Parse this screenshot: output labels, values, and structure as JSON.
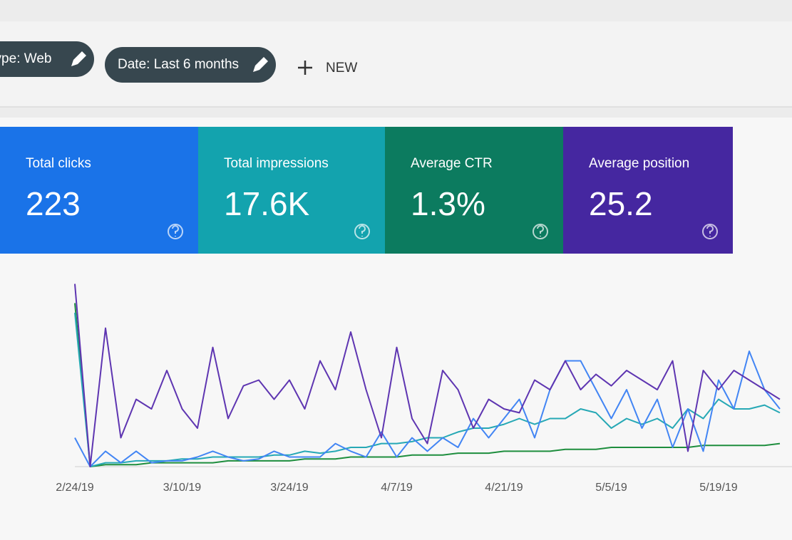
{
  "filters": [
    {
      "label": "Type: Web"
    },
    {
      "label": "Date: Last 6 months"
    }
  ],
  "new_button": "NEW",
  "metrics": [
    {
      "title": "Total clicks",
      "value": "223",
      "color": "#1a73e8"
    },
    {
      "title": "Total impressions",
      "value": "17.6K",
      "color": "#13a3ae"
    },
    {
      "title": "Average CTR",
      "value": "1.3%",
      "color": "#0c7b5f"
    },
    {
      "title": "Average position",
      "value": "25.2",
      "color": "#4527a0"
    }
  ],
  "chart_data": {
    "type": "line",
    "categories": [
      "2/24/19",
      null,
      null,
      null,
      null,
      null,
      null,
      "3/10/19",
      null,
      null,
      null,
      null,
      null,
      null,
      "3/24/19",
      null,
      null,
      null,
      null,
      null,
      null,
      "4/7/19",
      null,
      null,
      null,
      null,
      null,
      null,
      "4/21/19",
      null,
      null,
      null,
      null,
      null,
      null,
      "5/5/19",
      null,
      null,
      null,
      null,
      null,
      null,
      "5/19/19",
      null,
      null,
      null,
      null
    ],
    "ylim": [
      0,
      100
    ],
    "series": [
      {
        "color": "#5e35b1",
        "values": [
          95,
          0,
          72,
          15,
          35,
          30,
          50,
          30,
          20,
          62,
          25,
          42,
          45,
          35,
          45,
          30,
          55,
          40,
          70,
          40,
          15,
          62,
          25,
          12,
          50,
          40,
          20,
          35,
          30,
          28,
          45,
          40,
          55,
          40,
          48,
          42,
          50,
          45,
          40,
          55,
          8,
          50,
          40,
          50,
          45,
          40,
          35
        ]
      },
      {
        "color": "#4285f4",
        "values": [
          15,
          0,
          8,
          2,
          8,
          2,
          3,
          3,
          5,
          8,
          5,
          3,
          4,
          8,
          5,
          5,
          5,
          12,
          8,
          5,
          18,
          5,
          15,
          8,
          15,
          10,
          25,
          15,
          25,
          35,
          15,
          40,
          55,
          55,
          40,
          25,
          40,
          20,
          35,
          10,
          30,
          8,
          45,
          30,
          60,
          40,
          30
        ]
      },
      {
        "color": "#26a8b5",
        "values": [
          80,
          0,
          2,
          2,
          3,
          3,
          3,
          4,
          4,
          5,
          5,
          5,
          5,
          6,
          6,
          8,
          7,
          8,
          10,
          10,
          12,
          12,
          13,
          15,
          15,
          18,
          20,
          20,
          22,
          25,
          22,
          25,
          25,
          30,
          28,
          20,
          25,
          22,
          25,
          20,
          30,
          25,
          35,
          30,
          30,
          32,
          28
        ]
      },
      {
        "color": "#1e8e3e",
        "values": [
          85,
          0,
          1,
          1,
          1,
          2,
          2,
          2,
          2,
          2,
          3,
          3,
          3,
          3,
          3,
          4,
          4,
          4,
          5,
          5,
          5,
          5,
          6,
          6,
          6,
          7,
          7,
          7,
          8,
          8,
          8,
          8,
          9,
          9,
          9,
          10,
          10,
          10,
          10,
          10,
          10,
          11,
          11,
          11,
          11,
          11,
          12
        ]
      }
    ]
  }
}
